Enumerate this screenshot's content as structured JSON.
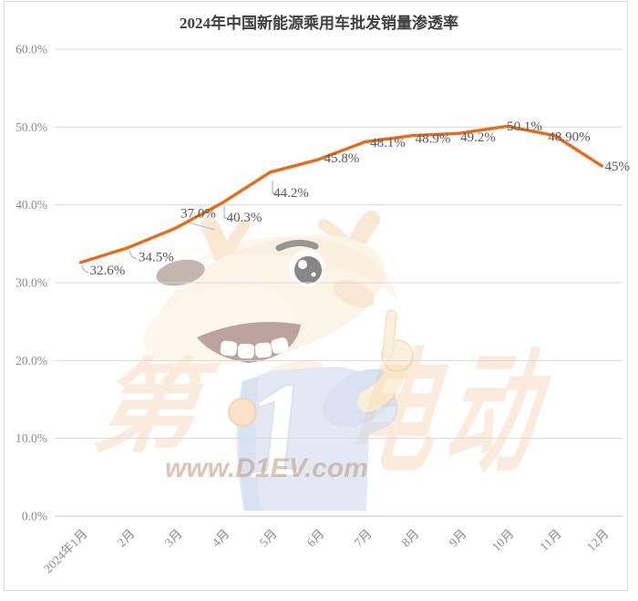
{
  "title": "2024年中国新能源乘用车批发销量渗透率",
  "watermark": {
    "left_char": "第",
    "right_chars": "电动",
    "shirt_number": "1",
    "url": "www.D1EV.com"
  },
  "chart_data": {
    "type": "line",
    "title": "2024年中国新能源乘用车批发销量渗透率",
    "categories": [
      "2024年1月",
      "2月",
      "3月",
      "4月",
      "5月",
      "6月",
      "7月",
      "8月",
      "9月",
      "10月",
      "11月",
      "12月"
    ],
    "values": [
      32.6,
      34.5,
      37.0,
      40.3,
      44.2,
      45.8,
      48.1,
      48.9,
      49.2,
      50.1,
      48.9,
      45.0
    ],
    "point_labels": [
      "32.6%",
      "34.5%",
      "37.0%",
      "40.3%",
      "44.2%",
      "45.8%",
      "48.1%",
      "48.9%",
      "49.2%",
      "50.1%",
      "48.90%",
      "45%"
    ],
    "ytick_labels": [
      "0.0%",
      "10.0%",
      "20.0%",
      "30.0%",
      "40.0%",
      "50.0%",
      "60.0%"
    ],
    "ylim": [
      0,
      60
    ],
    "grid": true,
    "legend": "none",
    "line_color": "#EA6A17",
    "grid_color": "#d9d9d9",
    "axis_label_color": "#8c8c8c",
    "data_label_color": "#595959"
  }
}
